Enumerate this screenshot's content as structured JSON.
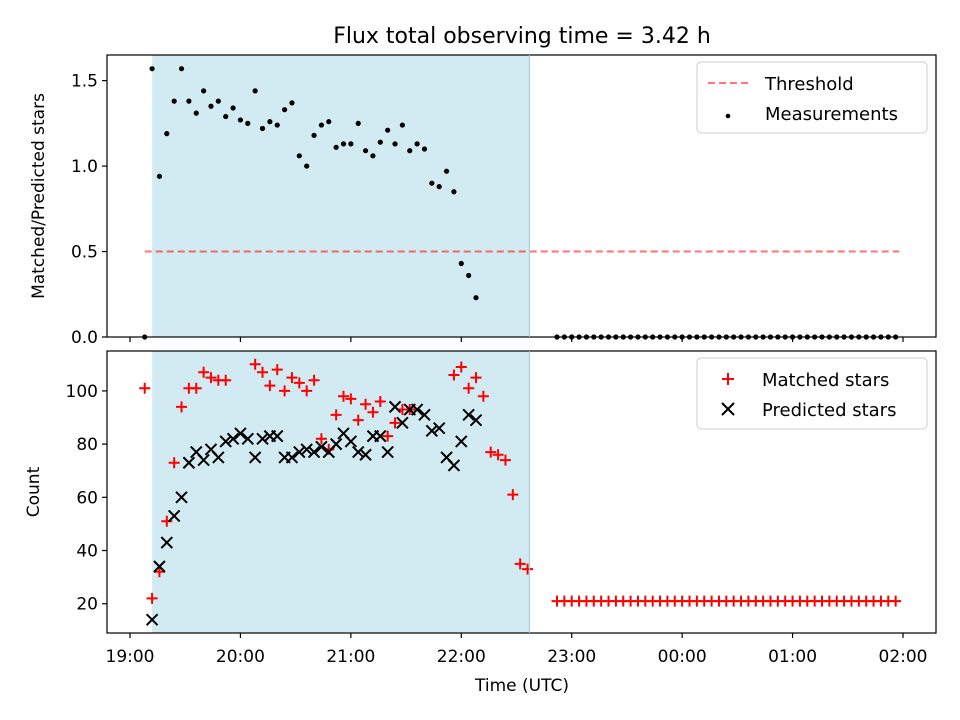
{
  "chart_data": {
    "title": "Flux total observing time = 3.42 h",
    "xlabel": "Time (UTC)",
    "x_range": [
      "19:00",
      "02:00"
    ],
    "xticks": [
      "19:00",
      "20:00",
      "21:00",
      "22:00",
      "23:00",
      "00:00",
      "01:00",
      "02:00"
    ],
    "shaded_interval": {
      "start": "19:12",
      "end": "22:37"
    },
    "colors": {
      "shade": "#add8e6",
      "threshold": "#ff0000",
      "measurements": "#000000",
      "matched": "#ff0000",
      "predicted": "#000000"
    },
    "panels": [
      {
        "type": "scatter",
        "ylabel": "Matched/Predicted stars",
        "ylim": [
          0.0,
          1.65
        ],
        "yticks": [
          "0.0",
          "0.5",
          "1.0",
          "1.5"
        ],
        "legend": {
          "placement": "top-right",
          "entries": [
            "Threshold",
            "Measurements"
          ]
        },
        "threshold": {
          "name": "Threshold",
          "value": 0.5,
          "x_start": "19:08",
          "x_end": "01:58"
        },
        "series": [
          {
            "name": "Measurements",
            "marker": "dot",
            "points": [
              [
                "19:08",
                0.0
              ],
              [
                "19:12",
                1.57
              ],
              [
                "19:16",
                0.94
              ],
              [
                "19:20",
                1.19
              ],
              [
                "19:24",
                1.38
              ],
              [
                "19:28",
                1.57
              ],
              [
                "19:32",
                1.38
              ],
              [
                "19:36",
                1.31
              ],
              [
                "19:40",
                1.44
              ],
              [
                "19:44",
                1.35
              ],
              [
                "19:48",
                1.38
              ],
              [
                "19:52",
                1.29
              ],
              [
                "19:56",
                1.34
              ],
              [
                "20:00",
                1.27
              ],
              [
                "20:04",
                1.25
              ],
              [
                "20:08",
                1.44
              ],
              [
                "20:12",
                1.22
              ],
              [
                "20:16",
                1.26
              ],
              [
                "20:20",
                1.24
              ],
              [
                "20:24",
                1.33
              ],
              [
                "20:28",
                1.37
              ],
              [
                "20:32",
                1.06
              ],
              [
                "20:36",
                1.0
              ],
              [
                "20:40",
                1.18
              ],
              [
                "20:44",
                1.24
              ],
              [
                "20:48",
                1.26
              ],
              [
                "20:52",
                1.11
              ],
              [
                "20:56",
                1.13
              ],
              [
                "21:00",
                1.13
              ],
              [
                "21:04",
                1.25
              ],
              [
                "21:08",
                1.09
              ],
              [
                "21:12",
                1.06
              ],
              [
                "21:16",
                1.14
              ],
              [
                "21:20",
                1.21
              ],
              [
                "21:24",
                1.13
              ],
              [
                "21:28",
                1.24
              ],
              [
                "21:32",
                1.09
              ],
              [
                "21:36",
                1.13
              ],
              [
                "21:40",
                1.1
              ],
              [
                "21:44",
                0.9
              ],
              [
                "21:48",
                0.88
              ],
              [
                "21:52",
                0.97
              ],
              [
                "21:56",
                0.85
              ],
              [
                "22:00",
                0.43
              ],
              [
                "22:04",
                0.36
              ],
              [
                "22:08",
                0.23
              ],
              [
                "22:52",
                0.0
              ],
              [
                "22:56",
                0.0
              ],
              [
                "23:00",
                0.0
              ],
              [
                "23:04",
                0.0
              ],
              [
                "23:08",
                0.0
              ],
              [
                "23:12",
                0.0
              ],
              [
                "23:16",
                0.0
              ],
              [
                "23:20",
                0.0
              ],
              [
                "23:24",
                0.0
              ],
              [
                "23:28",
                0.0
              ],
              [
                "23:32",
                0.0
              ],
              [
                "23:36",
                0.0
              ],
              [
                "23:40",
                0.0
              ],
              [
                "23:44",
                0.0
              ],
              [
                "23:48",
                0.0
              ],
              [
                "23:52",
                0.0
              ],
              [
                "23:56",
                0.0
              ],
              [
                "00:00",
                0.0
              ],
              [
                "00:04",
                0.0
              ],
              [
                "00:08",
                0.0
              ],
              [
                "00:12",
                0.0
              ],
              [
                "00:16",
                0.0
              ],
              [
                "00:20",
                0.0
              ],
              [
                "00:24",
                0.0
              ],
              [
                "00:28",
                0.0
              ],
              [
                "00:32",
                0.0
              ],
              [
                "00:36",
                0.0
              ],
              [
                "00:40",
                0.0
              ],
              [
                "00:44",
                0.0
              ],
              [
                "00:48",
                0.0
              ],
              [
                "00:52",
                0.0
              ],
              [
                "00:56",
                0.0
              ],
              [
                "01:00",
                0.0
              ],
              [
                "01:04",
                0.0
              ],
              [
                "01:08",
                0.0
              ],
              [
                "01:12",
                0.0
              ],
              [
                "01:16",
                0.0
              ],
              [
                "01:20",
                0.0
              ],
              [
                "01:24",
                0.0
              ],
              [
                "01:28",
                0.0
              ],
              [
                "01:32",
                0.0
              ],
              [
                "01:36",
                0.0
              ],
              [
                "01:40",
                0.0
              ],
              [
                "01:44",
                0.0
              ],
              [
                "01:48",
                0.0
              ],
              [
                "01:52",
                0.0
              ],
              [
                "01:56",
                0.0
              ]
            ]
          }
        ]
      },
      {
        "type": "scatter",
        "ylabel": "Count",
        "ylim": [
          9,
          115
        ],
        "yticks": [
          "20",
          "40",
          "60",
          "80",
          "100"
        ],
        "legend": {
          "placement": "top-right",
          "entries": [
            "Matched stars",
            "Predicted stars"
          ]
        },
        "series": [
          {
            "name": "Matched stars",
            "marker": "plus",
            "points": [
              [
                "19:08",
                101
              ],
              [
                "19:12",
                22
              ],
              [
                "19:16",
                32
              ],
              [
                "19:20",
                51
              ],
              [
                "19:24",
                73
              ],
              [
                "19:28",
                94
              ],
              [
                "19:32",
                101
              ],
              [
                "19:36",
                101
              ],
              [
                "19:40",
                107
              ],
              [
                "19:44",
                105
              ],
              [
                "19:48",
                104
              ],
              [
                "19:52",
                104
              ],
              [
                "20:08",
                110
              ],
              [
                "20:12",
                107
              ],
              [
                "20:16",
                102
              ],
              [
                "20:20",
                108
              ],
              [
                "20:24",
                100
              ],
              [
                "20:28",
                105
              ],
              [
                "20:32",
                103
              ],
              [
                "20:36",
                100
              ],
              [
                "20:40",
                104
              ],
              [
                "20:44",
                82
              ],
              [
                "20:48",
                78
              ],
              [
                "20:52",
                91
              ],
              [
                "20:56",
                98
              ],
              [
                "21:00",
                97
              ],
              [
                "21:04",
                89
              ],
              [
                "21:08",
                95
              ],
              [
                "21:12",
                92
              ],
              [
                "21:16",
                96
              ],
              [
                "21:20",
                83
              ],
              [
                "21:24",
                88
              ],
              [
                "21:28",
                93
              ],
              [
                "21:32",
                93
              ],
              [
                "21:56",
                106
              ],
              [
                "22:00",
                109
              ],
              [
                "22:04",
                101
              ],
              [
                "22:08",
                105
              ],
              [
                "22:12",
                98
              ],
              [
                "22:16",
                77
              ],
              [
                "22:20",
                76
              ],
              [
                "22:24",
                74
              ],
              [
                "22:28",
                61
              ],
              [
                "22:32",
                35
              ],
              [
                "22:36",
                33
              ],
              [
                "22:52",
                21
              ],
              [
                "22:56",
                21
              ],
              [
                "23:00",
                21
              ],
              [
                "23:04",
                21
              ],
              [
                "23:08",
                21
              ],
              [
                "23:12",
                21
              ],
              [
                "23:16",
                21
              ],
              [
                "23:20",
                21
              ],
              [
                "23:24",
                21
              ],
              [
                "23:28",
                21
              ],
              [
                "23:32",
                21
              ],
              [
                "23:36",
                21
              ],
              [
                "23:40",
                21
              ],
              [
                "23:44",
                21
              ],
              [
                "23:48",
                21
              ],
              [
                "23:52",
                21
              ],
              [
                "23:56",
                21
              ],
              [
                "00:00",
                21
              ],
              [
                "00:04",
                21
              ],
              [
                "00:08",
                21
              ],
              [
                "00:12",
                21
              ],
              [
                "00:16",
                21
              ],
              [
                "00:20",
                21
              ],
              [
                "00:24",
                21
              ],
              [
                "00:28",
                21
              ],
              [
                "00:32",
                21
              ],
              [
                "00:36",
                21
              ],
              [
                "00:40",
                21
              ],
              [
                "00:44",
                21
              ],
              [
                "00:48",
                21
              ],
              [
                "00:52",
                21
              ],
              [
                "00:56",
                21
              ],
              [
                "01:00",
                21
              ],
              [
                "01:04",
                21
              ],
              [
                "01:08",
                21
              ],
              [
                "01:12",
                21
              ],
              [
                "01:16",
                21
              ],
              [
                "01:20",
                21
              ],
              [
                "01:24",
                21
              ],
              [
                "01:28",
                21
              ],
              [
                "01:32",
                21
              ],
              [
                "01:36",
                21
              ],
              [
                "01:40",
                21
              ],
              [
                "01:44",
                21
              ],
              [
                "01:48",
                21
              ],
              [
                "01:52",
                21
              ],
              [
                "01:56",
                21
              ]
            ]
          },
          {
            "name": "Predicted stars",
            "marker": "x",
            "points": [
              [
                "19:12",
                14
              ],
              [
                "19:16",
                34
              ],
              [
                "19:20",
                43
              ],
              [
                "19:24",
                53
              ],
              [
                "19:28",
                60
              ],
              [
                "19:32",
                73
              ],
              [
                "19:36",
                77
              ],
              [
                "19:40",
                74
              ],
              [
                "19:44",
                78
              ],
              [
                "19:48",
                75
              ],
              [
                "19:52",
                81
              ],
              [
                "19:56",
                82
              ],
              [
                "20:00",
                84
              ],
              [
                "20:04",
                82
              ],
              [
                "20:08",
                75
              ],
              [
                "20:12",
                82
              ],
              [
                "20:16",
                83
              ],
              [
                "20:20",
                83
              ],
              [
                "20:24",
                75
              ],
              [
                "20:28",
                75
              ],
              [
                "20:32",
                77
              ],
              [
                "20:36",
                78
              ],
              [
                "20:40",
                77
              ],
              [
                "20:44",
                79
              ],
              [
                "20:48",
                77
              ],
              [
                "20:52",
                80
              ],
              [
                "20:56",
                84
              ],
              [
                "21:00",
                81
              ],
              [
                "21:04",
                77
              ],
              [
                "21:08",
                76
              ],
              [
                "21:12",
                83
              ],
              [
                "21:16",
                83
              ],
              [
                "21:20",
                77
              ],
              [
                "21:24",
                94
              ],
              [
                "21:28",
                88
              ],
              [
                "21:32",
                93
              ],
              [
                "21:36",
                93
              ],
              [
                "21:40",
                91
              ],
              [
                "21:44",
                85
              ],
              [
                "21:48",
                86
              ],
              [
                "21:52",
                75
              ],
              [
                "21:56",
                72
              ],
              [
                "22:00",
                81
              ],
              [
                "22:04",
                91
              ],
              [
                "22:08",
                89
              ]
            ]
          }
        ]
      }
    ]
  }
}
